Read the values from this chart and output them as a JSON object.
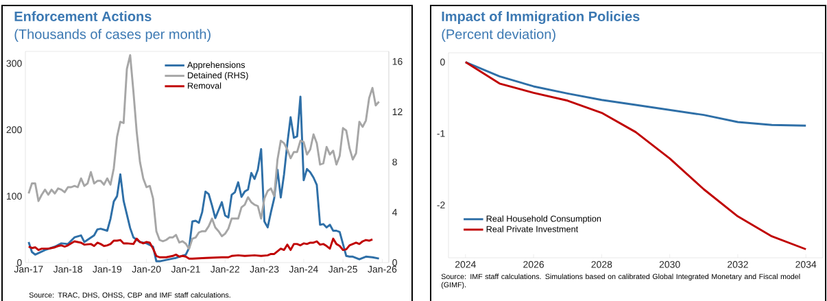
{
  "chart_data": [
    {
      "type": "line",
      "title": "Enforcement Actions",
      "subtitle": "(Thousands of cases per month)",
      "xlim": [
        "2016-12",
        "2026-03"
      ],
      "xticks": [
        {
          "value": "2017-01",
          "label": "Jan-17"
        },
        {
          "value": "2018-01",
          "label": "Jan-18"
        },
        {
          "value": "2019-01",
          "label": "Jan-19"
        },
        {
          "value": "2020-01",
          "label": "Jan-20"
        },
        {
          "value": "2021-01",
          "label": "Jan-21"
        },
        {
          "value": "2022-01",
          "label": "Jan-22"
        },
        {
          "value": "2023-01",
          "label": "Jan-23"
        },
        {
          "value": "2024-01",
          "label": "Jan-24"
        },
        {
          "value": "2025-01",
          "label": "Jan-25"
        },
        {
          "value": "2026-01",
          "label": "Jan-26"
        }
      ],
      "ylim": [
        0,
        318
      ],
      "yticks": [
        0,
        100,
        200,
        300
      ],
      "y2lim": [
        0,
        16.8
      ],
      "y2ticks": [
        0,
        4,
        8,
        12,
        16
      ],
      "legend": "top",
      "series": [
        {
          "name": "Apprehensions",
          "color": "#2e6fa7",
          "x": [
            "2017-01",
            "2017-02",
            "2017-03",
            "2017-06",
            "2017-09",
            "2017-11",
            "2018-01",
            "2018-03",
            "2018-05",
            "2018-06",
            "2018-09",
            "2018-10",
            "2018-11",
            "2019-01",
            "2019-02",
            "2019-03",
            "2019-04",
            "2019-05",
            "2019-06",
            "2019-08",
            "2019-09",
            "2019-11",
            "2020-01",
            "2020-03",
            "2020-04",
            "2020-05",
            "2020-08",
            "2020-10",
            "2021-01",
            "2021-02",
            "2021-03",
            "2021-04",
            "2021-05",
            "2021-06",
            "2021-07",
            "2021-08",
            "2021-09",
            "2021-10",
            "2021-11",
            "2021-12",
            "2022-01",
            "2022-02",
            "2022-03",
            "2022-04",
            "2022-05",
            "2022-06",
            "2022-07",
            "2022-08",
            "2022-09",
            "2022-10",
            "2022-11",
            "2022-12",
            "2023-01",
            "2023-02",
            "2023-03",
            "2023-04",
            "2023-05",
            "2023-06",
            "2023-07",
            "2023-08",
            "2023-09",
            "2023-10",
            "2023-11",
            "2023-12",
            "2024-01",
            "2024-02",
            "2024-03",
            "2024-04",
            "2024-05",
            "2024-06",
            "2024-07",
            "2024-08",
            "2024-09",
            "2024-10",
            "2024-11",
            "2024-12",
            "2025-01",
            "2025-02",
            "2025-03",
            "2025-04",
            "2025-06",
            "2025-08",
            "2025-10",
            "2025-12"
          ],
          "values": [
            31,
            16,
            12,
            19,
            24,
            29,
            28,
            38,
            41,
            31,
            41,
            50,
            51,
            48,
            66,
            92,
            100,
            133,
            93,
            52,
            38,
            31,
            29,
            24,
            2,
            2,
            5,
            7,
            12,
            22,
            62,
            63,
            60,
            76,
            107,
            103,
            86,
            67,
            79,
            91,
            71,
            68,
            102,
            106,
            121,
            99,
            107,
            110,
            135,
            126,
            140,
            171,
            62,
            53,
            76,
            97,
            140,
            98,
            133,
            179,
            219,
            188,
            190,
            250,
            124,
            141,
            136,
            128,
            117,
            57,
            58,
            53,
            57,
            48,
            48,
            46,
            28,
            10,
            9,
            9,
            5,
            9,
            8,
            6
          ]
        },
        {
          "name": "Detained (RHS)",
          "color": "#a6a6a6",
          "axis": "y2",
          "x": [
            "2017-01",
            "2017-02",
            "2017-03",
            "2017-04",
            "2017-05",
            "2017-06",
            "2017-07",
            "2017-08",
            "2017-09",
            "2017-10",
            "2017-11",
            "2017-12",
            "2018-01",
            "2018-02",
            "2018-03",
            "2018-04",
            "2018-05",
            "2018-06",
            "2018-07",
            "2018-08",
            "2018-09",
            "2018-10",
            "2018-11",
            "2018-12",
            "2019-01",
            "2019-02",
            "2019-03",
            "2019-04",
            "2019-05",
            "2019-06",
            "2019-07",
            "2019-08",
            "2019-09",
            "2019-10",
            "2019-11",
            "2019-12",
            "2020-01",
            "2020-02",
            "2020-03",
            "2020-04",
            "2020-05",
            "2020-06",
            "2020-07",
            "2020-08",
            "2020-09",
            "2020-10",
            "2020-11",
            "2020-12",
            "2021-01",
            "2021-02",
            "2021-03",
            "2021-04",
            "2021-05",
            "2021-06",
            "2021-07",
            "2021-08",
            "2021-09",
            "2021-10",
            "2021-11",
            "2021-12",
            "2022-01",
            "2022-02",
            "2022-03",
            "2022-04",
            "2022-05",
            "2022-06",
            "2022-07",
            "2022-08",
            "2022-09",
            "2022-10",
            "2022-11",
            "2022-12",
            "2023-01",
            "2023-02",
            "2023-03",
            "2023-04",
            "2023-05",
            "2023-06",
            "2023-07",
            "2023-08",
            "2023-09",
            "2023-10",
            "2023-11",
            "2023-12",
            "2024-01",
            "2024-02",
            "2024-03",
            "2024-04",
            "2024-05",
            "2024-06",
            "2024-07",
            "2024-08",
            "2024-09",
            "2024-10",
            "2024-11",
            "2024-12",
            "2025-01",
            "2025-02",
            "2025-03",
            "2025-04",
            "2025-05",
            "2025-06",
            "2025-07",
            "2025-08",
            "2025-09",
            "2025-10",
            "2025-11",
            "2025-12"
          ],
          "values": [
            5.5,
            6.3,
            6.3,
            4.9,
            5.4,
            5.8,
            5.4,
            5.8,
            5.5,
            5.9,
            5.8,
            5.6,
            6.0,
            6.0,
            6.1,
            6.0,
            6.7,
            6.1,
            6.3,
            7.2,
            6.3,
            6.5,
            6.5,
            6.2,
            6.7,
            6.2,
            7.5,
            10.0,
            11.2,
            11.1,
            15.4,
            16.5,
            13.6,
            10.4,
            8.0,
            6.7,
            6.0,
            6.1,
            5.1,
            2.5,
            1.8,
            1.7,
            1.8,
            2.0,
            2.0,
            2.2,
            1.6,
            1.7,
            1.5,
            1.1,
            1.9,
            2.0,
            2.4,
            2.5,
            2.5,
            2.9,
            3.5,
            2.8,
            2.5,
            2.1,
            2.3,
            2.7,
            3.5,
            3.5,
            3.5,
            4.4,
            4.6,
            5.2,
            4.8,
            4.6,
            4.5,
            3.5,
            5.1,
            5.7,
            5.9,
            5.3,
            8.2,
            9.7,
            9.5,
            9.0,
            8.3,
            8.8,
            8.8,
            9.7,
            9.6,
            8.6,
            9.0,
            10.2,
            9.5,
            7.8,
            7.9,
            9.2,
            8.6,
            8.9,
            7.8,
            8.5,
            10.7,
            10.5,
            9.1,
            8.2,
            8.7,
            11.2,
            10.8,
            11.3,
            13.1,
            13.9,
            12.5,
            12.8
          ]
        },
        {
          "name": "Removal",
          "color": "#c00000",
          "x": [
            "2017-01",
            "2017-02",
            "2017-03",
            "2017-04",
            "2017-05",
            "2017-07",
            "2017-08",
            "2017-09",
            "2017-10",
            "2017-11",
            "2017-12",
            "2018-01",
            "2018-03",
            "2018-05",
            "2018-06",
            "2018-08",
            "2018-09",
            "2018-10",
            "2018-11",
            "2018-12",
            "2019-01",
            "2019-02",
            "2019-03",
            "2019-04",
            "2019-05",
            "2019-06",
            "2019-07",
            "2019-09",
            "2019-10",
            "2019-11",
            "2019-12",
            "2020-01",
            "2020-02",
            "2020-03",
            "2020-04",
            "2020-05",
            "2020-07",
            "2020-08",
            "2020-09",
            "2020-10",
            "2020-11",
            "2020-12",
            "2021-01",
            "2021-02",
            "2021-03",
            "2021-07",
            "2021-12",
            "2022-02",
            "2022-03",
            "2022-05",
            "2022-07",
            "2022-10",
            "2022-12",
            "2023-02",
            "2023-03",
            "2023-04",
            "2023-06",
            "2023-07",
            "2023-08",
            "2023-09",
            "2023-10",
            "2023-11",
            "2023-12",
            "2024-01",
            "2024-02",
            "2024-03",
            "2024-04",
            "2024-05",
            "2024-06",
            "2024-07",
            "2024-08",
            "2024-09",
            "2024-10",
            "2024-11",
            "2024-12",
            "2025-01",
            "2025-02",
            "2025-03",
            "2025-04",
            "2025-05",
            "2025-06",
            "2025-07",
            "2025-08",
            "2025-09",
            "2025-10"
          ],
          "values": [
            24,
            22,
            23,
            19,
            21,
            21,
            22,
            23,
            25,
            26,
            24,
            26,
            32,
            30,
            27,
            28,
            25,
            30,
            28,
            25,
            26,
            28,
            33,
            33,
            34,
            29,
            29,
            28,
            36,
            31,
            29,
            31,
            30,
            21,
            10,
            8,
            8,
            9,
            10,
            12,
            9,
            10,
            9,
            6,
            6,
            7,
            8,
            8,
            10,
            11,
            10,
            11,
            10,
            11,
            13,
            13,
            21,
            19,
            27,
            19,
            28,
            28,
            26,
            29,
            28,
            30,
            30,
            32,
            27,
            28,
            25,
            21,
            36,
            28,
            25,
            19,
            20,
            26,
            28,
            30,
            28,
            32,
            34,
            33,
            35
          ]
        }
      ],
      "annotations": [
        "Source: TRAC, DHS, OHSS, CBP and IMF staff calculations."
      ]
    },
    {
      "type": "line",
      "title": "Impact of Immigration Policies",
      "subtitle": "(Percent deviation)",
      "x": [
        2024,
        2025,
        2026,
        2027,
        2028,
        2029,
        2030,
        2031,
        2032,
        2033,
        2034
      ],
      "xlim": [
        2023.5,
        2034.5
      ],
      "xticks": [
        2024,
        2026,
        2028,
        2030,
        2032,
        2034
      ],
      "ylim": [
        -2.74,
        0.13
      ],
      "yticks": [
        0,
        -1,
        -2
      ],
      "legend": "bottom left",
      "series": [
        {
          "name": "Real Household Consumption",
          "color": "#2e6fa7",
          "values": [
            0,
            -0.2,
            -0.34,
            -0.44,
            -0.53,
            -0.6,
            -0.67,
            -0.74,
            -0.84,
            -0.88,
            -0.89
          ]
        },
        {
          "name": "Real Private Investment",
          "color": "#c00000",
          "values": [
            0,
            -0.3,
            -0.43,
            -0.54,
            -0.71,
            -0.98,
            -1.35,
            -1.78,
            -2.16,
            -2.44,
            -2.62
          ]
        }
      ],
      "annotations": [
        "Source: IMF staff calculations. Simulations based on calibrated Global Integrated Monetary and Fiscal model (GIMF)."
      ]
    }
  ]
}
